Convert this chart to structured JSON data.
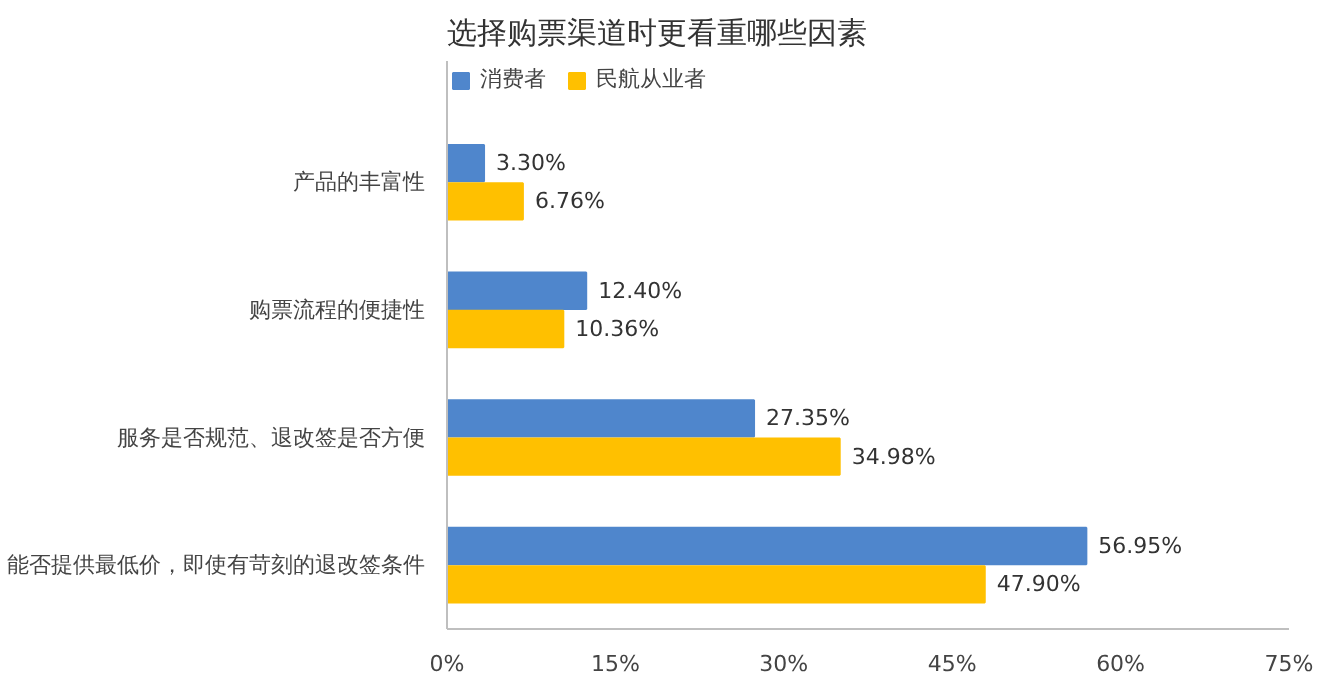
{
  "chart_data": {
    "type": "bar",
    "orientation": "horizontal",
    "title": "选择购票渠道时更看重哪些因素",
    "categories": [
      "产品的丰富性",
      "购票流程的便捷性",
      "服务是否规范、退改签是否方便",
      "能否提供最低价，即使有苛刻的退改签条件"
    ],
    "series": [
      {
        "name": "消费者",
        "color": "#4f86cc",
        "values": [
          3.3,
          12.4,
          27.35,
          56.95
        ],
        "value_labels": [
          "3.30%",
          "12.40%",
          "27.35%",
          "56.95%"
        ]
      },
      {
        "name": "民航从业者",
        "color": "#ffc000",
        "values": [
          6.76,
          10.36,
          34.98,
          47.9
        ],
        "value_labels": [
          "6.76%",
          "10.36%",
          "34.98%",
          "47.90%"
        ]
      }
    ],
    "xlim": [
      0,
      75
    ],
    "xticks": [
      {
        "value": 0,
        "label": "0%"
      },
      {
        "value": 15,
        "label": "15%"
      },
      {
        "value": 30,
        "label": "30%"
      },
      {
        "value": 45,
        "label": "45%"
      },
      {
        "value": 60,
        "label": "60%"
      },
      {
        "value": 75,
        "label": "75%"
      }
    ],
    "grid": false,
    "legend": "top left"
  }
}
